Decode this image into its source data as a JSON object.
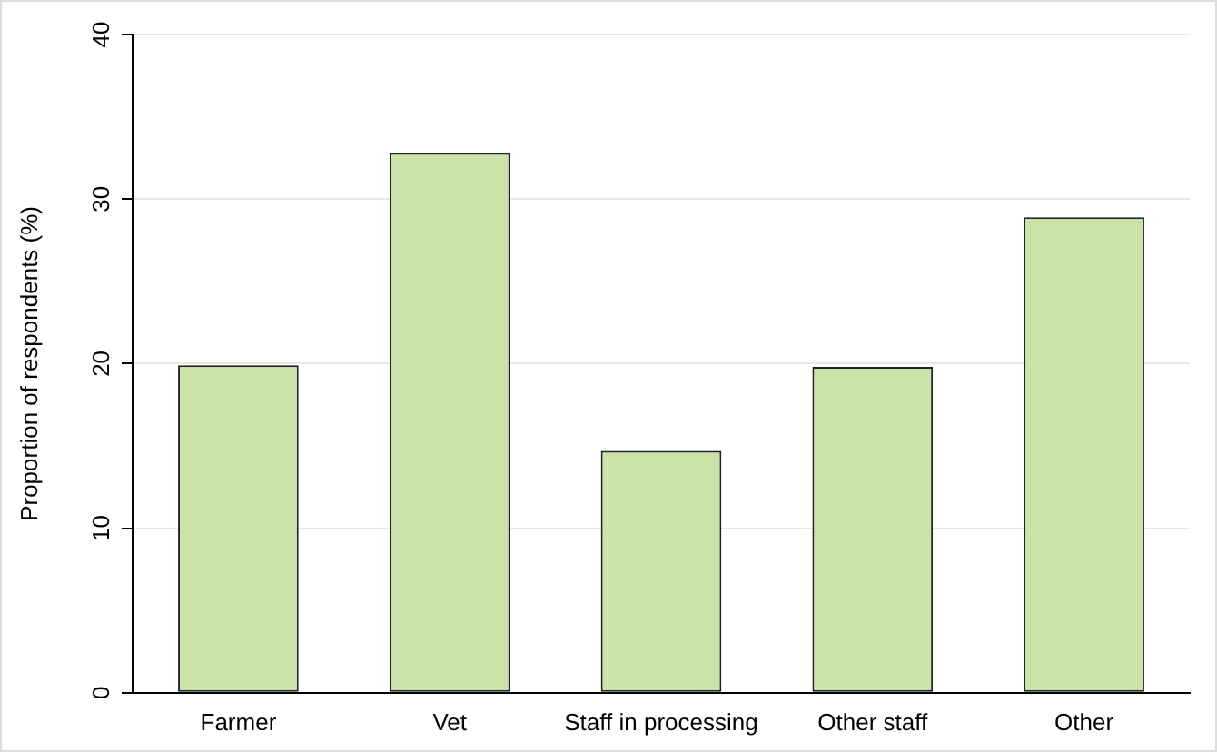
{
  "chart_data": {
    "type": "bar",
    "ylabel": "Proportion of respondents (%)",
    "categories": [
      "Farmer",
      "Vet",
      "Staff in processing",
      "Other staff",
      "Other"
    ],
    "values": [
      19.9,
      32.8,
      14.7,
      19.8,
      28.9
    ],
    "color": "#c9e3a8",
    "ylim": [
      0,
      40
    ],
    "yticks": [
      0,
      10,
      20,
      30,
      40
    ],
    "grid": "y",
    "legend": false
  }
}
